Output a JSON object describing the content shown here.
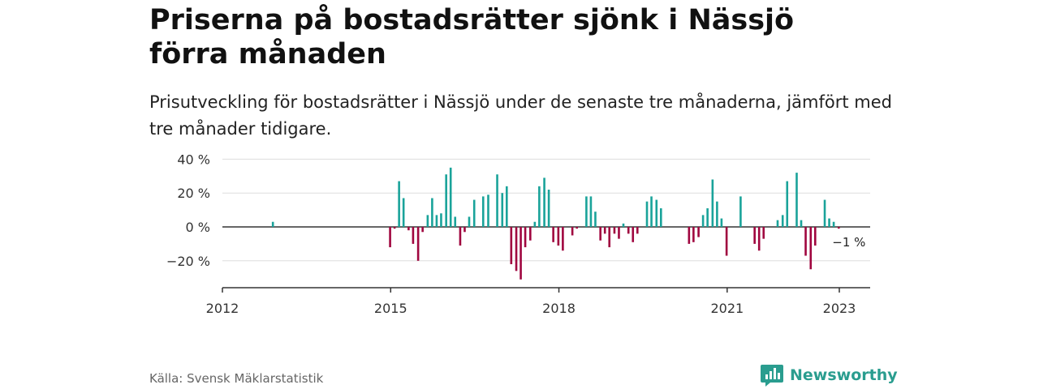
{
  "header": {
    "title": "Priserna på bostadsrätter sjönk i Nässjö förra månaden",
    "subtitle": "Prisutveckling för bostadsrätter i Nässjö under de senaste tre månaderna, jämfört med tre månader tidigare."
  },
  "footer": {
    "source": "Källa: Svensk Mäklarstatistik",
    "brand": "Newsworthy"
  },
  "colors": {
    "positive": "#1aa39a",
    "negative": "#a0063f",
    "grid": "#dddddd",
    "axis": "#333333",
    "brand": "#2a9d8f"
  },
  "chart_data": {
    "type": "bar",
    "title": "",
    "xlabel": "",
    "ylabel": "",
    "ylim": [
      -35,
      42
    ],
    "y_ticks": [
      40,
      20,
      0,
      -20
    ],
    "y_tick_labels": [
      "40 %",
      "20 %",
      "0 %",
      "−20 %"
    ],
    "x_ticks": [
      2012,
      2015,
      2018,
      2021,
      2023
    ],
    "x_tick_labels": [
      "2012",
      "2015",
      "2018",
      "2021",
      "2023"
    ],
    "grid": true,
    "legend": "none",
    "last_value_label": "−1 %",
    "points": [
      [
        2012.9,
        3
      ],
      [
        2014.99,
        -12
      ],
      [
        2015.07,
        -1
      ],
      [
        2015.15,
        27
      ],
      [
        2015.23,
        17
      ],
      [
        2015.32,
        -2
      ],
      [
        2015.4,
        -10
      ],
      [
        2015.49,
        -20
      ],
      [
        2015.57,
        -3
      ],
      [
        2015.66,
        7
      ],
      [
        2015.74,
        17
      ],
      [
        2015.82,
        7
      ],
      [
        2015.9,
        8
      ],
      [
        2015.99,
        31
      ],
      [
        2016.07,
        35
      ],
      [
        2016.15,
        6
      ],
      [
        2016.24,
        -11
      ],
      [
        2016.32,
        -3
      ],
      [
        2016.4,
        6
      ],
      [
        2016.49,
        16
      ],
      [
        2016.65,
        18
      ],
      [
        2016.74,
        19
      ],
      [
        2016.9,
        31
      ],
      [
        2016.99,
        20
      ],
      [
        2017.07,
        24
      ],
      [
        2017.15,
        -22
      ],
      [
        2017.24,
        -26
      ],
      [
        2017.32,
        -31
      ],
      [
        2017.4,
        -12
      ],
      [
        2017.49,
        -8
      ],
      [
        2017.57,
        3
      ],
      [
        2017.65,
        24
      ],
      [
        2017.74,
        29
      ],
      [
        2017.82,
        22
      ],
      [
        2017.9,
        -9
      ],
      [
        2017.99,
        -11
      ],
      [
        2018.07,
        -14
      ],
      [
        2018.24,
        -5
      ],
      [
        2018.32,
        -1
      ],
      [
        2018.49,
        18
      ],
      [
        2018.57,
        18
      ],
      [
        2018.65,
        9
      ],
      [
        2018.74,
        -8
      ],
      [
        2018.82,
        -4
      ],
      [
        2018.9,
        -12
      ],
      [
        2018.99,
        -4
      ],
      [
        2019.07,
        -7
      ],
      [
        2019.15,
        2
      ],
      [
        2019.24,
        -4
      ],
      [
        2019.32,
        -9
      ],
      [
        2019.4,
        -4
      ],
      [
        2019.57,
        15
      ],
      [
        2019.65,
        18
      ],
      [
        2019.74,
        16
      ],
      [
        2019.82,
        11
      ],
      [
        2020.32,
        -10
      ],
      [
        2020.4,
        -9
      ],
      [
        2020.49,
        -6
      ],
      [
        2020.57,
        7
      ],
      [
        2020.65,
        11
      ],
      [
        2020.74,
        28
      ],
      [
        2020.82,
        15
      ],
      [
        2020.9,
        5
      ],
      [
        2020.99,
        -17
      ],
      [
        2021.24,
        18
      ],
      [
        2021.49,
        -10
      ],
      [
        2021.57,
        -14
      ],
      [
        2021.65,
        -7
      ],
      [
        2021.9,
        4
      ],
      [
        2021.99,
        7
      ],
      [
        2022.07,
        27
      ],
      [
        2022.24,
        32
      ],
      [
        2022.32,
        4
      ],
      [
        2022.4,
        -17
      ],
      [
        2022.49,
        -25
      ],
      [
        2022.57,
        -11
      ],
      [
        2022.74,
        16
      ],
      [
        2022.82,
        5
      ],
      [
        2022.9,
        3
      ],
      [
        2022.99,
        -1
      ]
    ]
  }
}
